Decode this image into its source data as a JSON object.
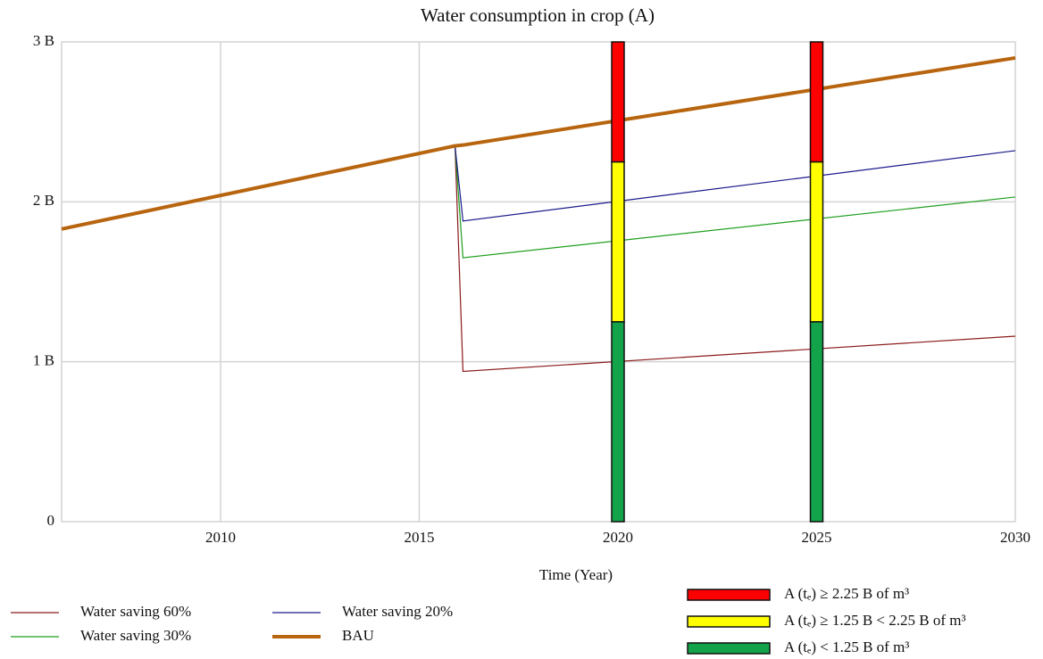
{
  "chart_data": {
    "type": "line",
    "title": "Water consumption in crop (A)",
    "xlabel": "Time (Year)",
    "x": [
      2006,
      2015.9,
      2016.1,
      2030
    ],
    "xlim": [
      2006,
      2030
    ],
    "xticks": [
      2010,
      2015,
      2020,
      2025,
      2030
    ],
    "ylim": [
      0,
      3
    ],
    "yticks": [
      0,
      {
        "value": 1,
        "label": "1 B"
      },
      {
        "value": 2,
        "label": "2 B"
      },
      {
        "value": 3,
        "label": "3 B"
      }
    ],
    "grid": true,
    "series": [
      {
        "name": "Water saving 60%",
        "color": "#8b1a1a",
        "width": 1.2,
        "values": [
          null,
          2.35,
          0.94,
          1.16
        ]
      },
      {
        "name": "Water saving 30%",
        "color": "#1e9e1e",
        "width": 1.2,
        "values": [
          null,
          2.35,
          1.65,
          2.03
        ]
      },
      {
        "name": "Water saving 20%",
        "color": "#1a1a8b",
        "width": 1.2,
        "values": [
          null,
          2.35,
          1.88,
          2.32
        ]
      },
      {
        "name": "BAU",
        "color": "#b8650f",
        "width": 4,
        "values": [
          1.83,
          2.35,
          2.355,
          2.9
        ]
      }
    ],
    "bars": {
      "x": [
        2020,
        2025
      ],
      "segments": [
        {
          "name": "A (tₑ) < 1.25 B of m³",
          "color": "#13a34a",
          "values": [
            1.25,
            1.25
          ]
        },
        {
          "name": "A (tₑ) ≥ 1.25 B  < 2.25 B of m³",
          "color": "#ffff00",
          "values": [
            1.0,
            1.0
          ]
        },
        {
          "name": "A (tₑ) ≥ 2.25 B of m³",
          "color": "#ff0000",
          "values": [
            0.75,
            0.75
          ]
        }
      ]
    }
  }
}
